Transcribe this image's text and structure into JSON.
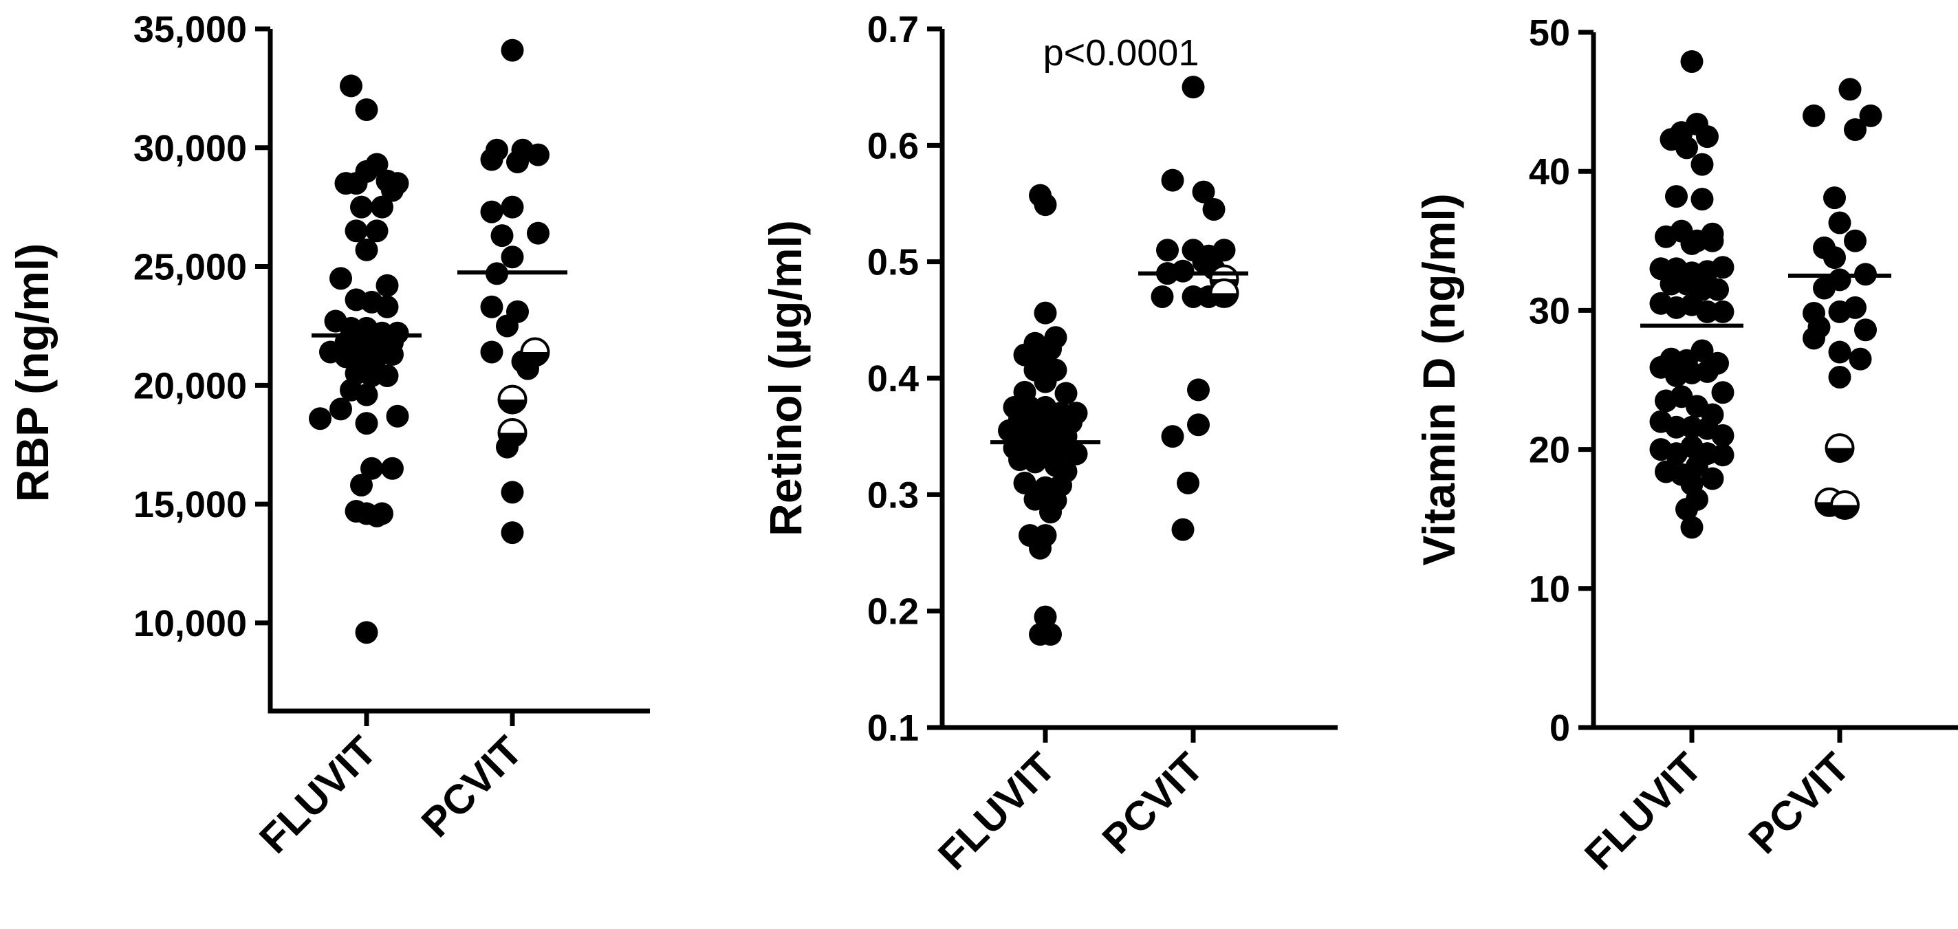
{
  "chart_data": [
    {
      "type": "scatter",
      "ylabel": "RBP (ng/ml)",
      "yticks": [
        "10,000",
        "15,000",
        "20,000",
        "25,000",
        "30,000",
        "35,000"
      ],
      "ytick_values": [
        10000,
        15000,
        20000,
        25000,
        30000,
        35000
      ],
      "ylim": [
        8000,
        35000
      ],
      "categories": [
        "FLUVIT",
        "PCVIT"
      ],
      "annotation": "",
      "means": [
        22100,
        24750
      ],
      "series": [
        {
          "category": "FLUVIT",
          "points": [
            [
              -0.15,
              32600
            ],
            [
              0.0,
              31600
            ],
            [
              -0.2,
              28500
            ],
            [
              -0.1,
              28500
            ],
            [
              0.1,
              29300
            ],
            [
              0.0,
              29000
            ],
            [
              0.2,
              28600
            ],
            [
              0.3,
              28500
            ],
            [
              0.25,
              28200
            ],
            [
              -0.05,
              27500
            ],
            [
              0.15,
              27500
            ],
            [
              -0.1,
              26500
            ],
            [
              0.1,
              26500
            ],
            [
              0.0,
              25700
            ],
            [
              -0.25,
              24500
            ],
            [
              0.2,
              24200
            ],
            [
              -0.1,
              23600
            ],
            [
              0.05,
              23500
            ],
            [
              0.2,
              23300
            ],
            [
              -0.3,
              22700
            ],
            [
              -0.15,
              22400
            ],
            [
              0.0,
              22400
            ],
            [
              0.15,
              22200
            ],
            [
              0.3,
              22200
            ],
            [
              -0.2,
              21800
            ],
            [
              -0.05,
              21800
            ],
            [
              0.1,
              21800
            ],
            [
              0.25,
              21800
            ],
            [
              -0.35,
              21400
            ],
            [
              -0.2,
              21200
            ],
            [
              -0.05,
              21000
            ],
            [
              0.1,
              21200
            ],
            [
              0.25,
              21300
            ],
            [
              -0.1,
              20500
            ],
            [
              0.05,
              20400
            ],
            [
              0.2,
              20400
            ],
            [
              -0.15,
              19800
            ],
            [
              0.0,
              19600
            ],
            [
              -0.25,
              19000
            ],
            [
              -0.45,
              18600
            ],
            [
              0.3,
              18700
            ],
            [
              0.0,
              18400
            ],
            [
              0.05,
              16500
            ],
            [
              0.25,
              16500
            ],
            [
              -0.05,
              15800
            ],
            [
              0.0,
              14600
            ],
            [
              -0.1,
              14700
            ],
            [
              0.15,
              14600
            ],
            [
              0.1,
              14500
            ],
            [
              0.0,
              9600
            ]
          ]
        },
        {
          "category": "PCVIT",
          "points": [
            [
              0.0,
              34100
            ],
            [
              -0.15,
              29900
            ],
            [
              0.1,
              29900
            ],
            [
              0.25,
              29700
            ],
            [
              -0.2,
              29500
            ],
            [
              0.05,
              29400
            ],
            [
              -0.2,
              27300
            ],
            [
              0.0,
              27500
            ],
            [
              -0.1,
              26300
            ],
            [
              0.25,
              26400
            ],
            [
              0.0,
              25400
            ],
            [
              -0.15,
              24700
            ],
            [
              -0.2,
              23300
            ],
            [
              0.05,
              23100
            ],
            [
              -0.05,
              22500
            ],
            [
              -0.2,
              21400
            ],
            [
              0.1,
              21000
            ],
            [
              0.15,
              20700
            ],
            [
              0.0,
              19500
            ],
            [
              -0.05,
              17400
            ],
            [
              0.0,
              15500
            ],
            [
              0.0,
              13800
            ]
          ],
          "half_filled_points": [
            [
              0.22,
              21400
            ],
            [
              0.0,
              19400
            ],
            [
              0.0,
              18000
            ]
          ]
        }
      ]
    },
    {
      "type": "scatter",
      "ylabel": "Retinol (µg/ml)",
      "yticks": [
        "0.1",
        "0.2",
        "0.3",
        "0.4",
        "0.5",
        "0.6",
        "0.7"
      ],
      "ytick_values": [
        0.1,
        0.2,
        0.3,
        0.4,
        0.5,
        0.6,
        0.7
      ],
      "ylim": [
        0.1,
        0.7
      ],
      "categories": [
        "FLUVIT",
        "PCVIT"
      ],
      "annotation": "p<0.0001",
      "means": [
        0.345,
        0.49
      ],
      "series": [
        {
          "category": "FLUVIT",
          "points": [
            [
              -0.05,
              0.557
            ],
            [
              0.0,
              0.549
            ],
            [
              0.0,
              0.456
            ],
            [
              -0.1,
              0.43
            ],
            [
              0.1,
              0.435
            ],
            [
              0.05,
              0.425
            ],
            [
              -0.2,
              0.42
            ],
            [
              0.0,
              0.415
            ],
            [
              -0.1,
              0.407
            ],
            [
              0.1,
              0.407
            ],
            [
              0.0,
              0.397
            ],
            [
              -0.2,
              0.388
            ],
            [
              0.2,
              0.387
            ],
            [
              -0.3,
              0.375
            ],
            [
              -0.15,
              0.375
            ],
            [
              0.0,
              0.375
            ],
            [
              0.15,
              0.37
            ],
            [
              0.3,
              0.37
            ],
            [
              -0.25,
              0.365
            ],
            [
              -0.1,
              0.365
            ],
            [
              0.1,
              0.36
            ],
            [
              0.25,
              0.362
            ],
            [
              -0.35,
              0.355
            ],
            [
              -0.2,
              0.35
            ],
            [
              -0.05,
              0.35
            ],
            [
              0.05,
              0.352
            ],
            [
              0.2,
              0.35
            ],
            [
              -0.3,
              0.34
            ],
            [
              -0.15,
              0.338
            ],
            [
              0.0,
              0.34
            ],
            [
              0.15,
              0.338
            ],
            [
              0.3,
              0.335
            ],
            [
              -0.25,
              0.33
            ],
            [
              -0.1,
              0.328
            ],
            [
              0.1,
              0.325
            ],
            [
              0.2,
              0.32
            ],
            [
              -0.2,
              0.31
            ],
            [
              0.0,
              0.306
            ],
            [
              0.15,
              0.308
            ],
            [
              -0.1,
              0.296
            ],
            [
              0.1,
              0.295
            ],
            [
              0.05,
              0.285
            ],
            [
              -0.15,
              0.265
            ],
            [
              0.0,
              0.265
            ],
            [
              -0.05,
              0.254
            ],
            [
              0.0,
              0.195
            ],
            [
              -0.05,
              0.18
            ],
            [
              0.05,
              0.18
            ]
          ]
        },
        {
          "category": "PCVIT",
          "points": [
            [
              0.0,
              0.65
            ],
            [
              -0.2,
              0.57
            ],
            [
              0.1,
              0.56
            ],
            [
              0.2,
              0.545
            ],
            [
              -0.25,
              0.51
            ],
            [
              0.0,
              0.51
            ],
            [
              0.15,
              0.505
            ],
            [
              0.3,
              0.51
            ],
            [
              -0.25,
              0.49
            ],
            [
              -0.1,
              0.492
            ],
            [
              0.1,
              0.5
            ],
            [
              0.2,
              0.494
            ],
            [
              -0.3,
              0.47
            ],
            [
              0.0,
              0.47
            ],
            [
              0.15,
              0.47
            ],
            [
              0.05,
              0.39
            ],
            [
              -0.2,
              0.35
            ],
            [
              0.05,
              0.36
            ],
            [
              -0.05,
              0.31
            ],
            [
              -0.1,
              0.27
            ]
          ],
          "half_filled_points": [
            [
              0.3,
              0.485
            ],
            [
              0.3,
              0.473
            ]
          ]
        }
      ]
    },
    {
      "type": "scatter",
      "ylabel": "Vitamin D (ng/ml)",
      "yticks": [
        "0",
        "10",
        "20",
        "30",
        "40",
        "50"
      ],
      "ytick_values": [
        0,
        10,
        20,
        30,
        40,
        50
      ],
      "ylim": [
        0,
        50
      ],
      "categories": [
        "FLUVIT",
        "PCVIT"
      ],
      "annotation": "",
      "means": [
        28.9,
        32.5
      ],
      "series": [
        {
          "category": "FLUVIT",
          "points": [
            [
              -0.1,
              42.8
            ],
            [
              0.05,
              43.4
            ],
            [
              -0.2,
              42.3
            ],
            [
              -0.05,
              41.7
            ],
            [
              0.1,
              40.5
            ],
            [
              0.15,
              42.5
            ],
            [
              0.0,
              47.9
            ],
            [
              -0.15,
              38.2
            ],
            [
              0.1,
              38.0
            ],
            [
              0.2,
              35.5
            ],
            [
              -0.25,
              35.3
            ],
            [
              -0.1,
              35.7
            ],
            [
              0.05,
              35.0
            ],
            [
              0.2,
              35.0
            ],
            [
              0.0,
              34.8
            ],
            [
              -0.3,
              33.0
            ],
            [
              -0.15,
              33.0
            ],
            [
              0.0,
              32.7
            ],
            [
              0.15,
              32.8
            ],
            [
              0.3,
              33.1
            ],
            [
              -0.2,
              31.9
            ],
            [
              -0.05,
              31.9
            ],
            [
              0.1,
              31.5
            ],
            [
              0.25,
              31.5
            ],
            [
              -0.3,
              30.5
            ],
            [
              -0.15,
              30.2
            ],
            [
              0.0,
              30.4
            ],
            [
              0.15,
              29.9
            ],
            [
              0.3,
              29.9
            ],
            [
              -0.2,
              26.5
            ],
            [
              -0.05,
              26.4
            ],
            [
              0.1,
              27.1
            ],
            [
              0.25,
              26.2
            ],
            [
              -0.3,
              25.9
            ],
            [
              -0.15,
              25.3
            ],
            [
              0.0,
              25.5
            ],
            [
              0.15,
              25.6
            ],
            [
              0.3,
              24.1
            ],
            [
              -0.25,
              23.5
            ],
            [
              -0.1,
              23.8
            ],
            [
              0.05,
              23.1
            ],
            [
              0.2,
              22.5
            ],
            [
              -0.3,
              22.0
            ],
            [
              -0.15,
              21.6
            ],
            [
              0.0,
              21.6
            ],
            [
              0.15,
              21.5
            ],
            [
              0.3,
              21.0
            ],
            [
              -0.3,
              20.0
            ],
            [
              -0.15,
              19.7
            ],
            [
              0.0,
              20.2
            ],
            [
              0.15,
              19.7
            ],
            [
              0.3,
              19.6
            ],
            [
              -0.25,
              18.4
            ],
            [
              -0.1,
              18.2
            ],
            [
              0.05,
              18.8
            ],
            [
              0.2,
              17.9
            ],
            [
              0.0,
              17.5
            ],
            [
              -0.05,
              15.7
            ],
            [
              0.05,
              16.4
            ],
            [
              0.0,
              14.4
            ]
          ]
        },
        {
          "category": "PCVIT",
          "points": [
            [
              0.1,
              45.9
            ],
            [
              -0.25,
              44.0
            ],
            [
              0.3,
              44.0
            ],
            [
              0.15,
              43.0
            ],
            [
              -0.05,
              38.1
            ],
            [
              0.0,
              36.3
            ],
            [
              0.15,
              35.0
            ],
            [
              -0.15,
              34.5
            ],
            [
              -0.05,
              33.8
            ],
            [
              0.25,
              32.6
            ],
            [
              -0.15,
              31.6
            ],
            [
              0.0,
              32.2
            ],
            [
              0.0,
              29.9
            ],
            [
              0.15,
              30.2
            ],
            [
              -0.25,
              29.8
            ],
            [
              -0.2,
              28.8
            ],
            [
              0.25,
              28.6
            ],
            [
              -0.25,
              28.0
            ],
            [
              0.0,
              27.0
            ],
            [
              0.2,
              26.5
            ],
            [
              0.0,
              25.2
            ]
          ],
          "half_filled_points": [
            [
              0.0,
              20.1
            ],
            [
              -0.1,
              16.2
            ],
            [
              0.05,
              16.0
            ]
          ]
        }
      ]
    }
  ]
}
